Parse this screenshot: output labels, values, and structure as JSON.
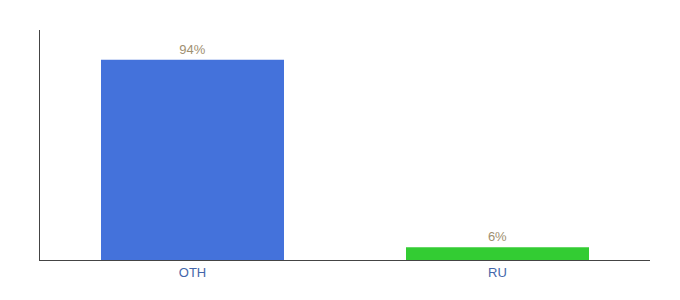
{
  "chart_data": {
    "type": "bar",
    "categories": [
      "OTH",
      "RU"
    ],
    "values": [
      94,
      6
    ],
    "value_labels": [
      "94%",
      "6%"
    ],
    "colors": [
      "#4472db",
      "#33cc33"
    ],
    "ylim": [
      0,
      108
    ],
    "data_labels": true,
    "tick_labels": "x",
    "grid": false
  }
}
